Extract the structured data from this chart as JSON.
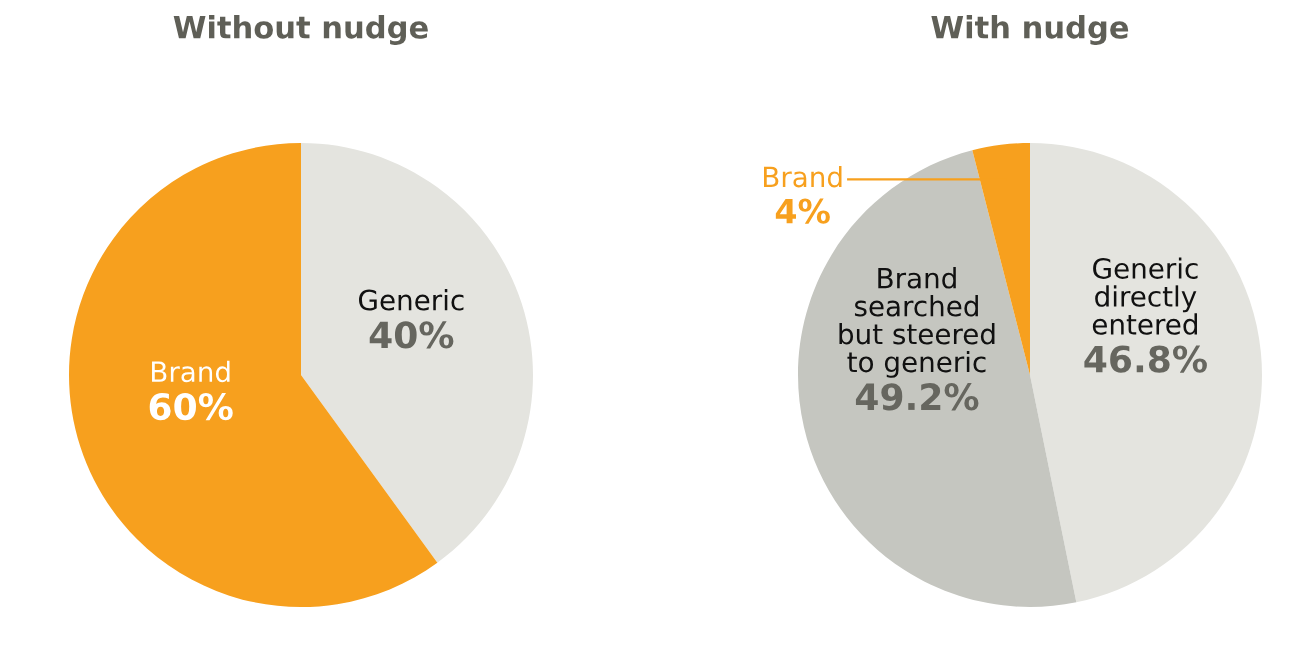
{
  "chart_data": [
    {
      "type": "pie",
      "title": "Without nudge",
      "categories": [
        "Generic",
        "Brand"
      ],
      "values": [
        40,
        60
      ],
      "value_labels": [
        "40%",
        "60%"
      ],
      "colors": [
        "#e4e4df",
        "#f7a01e"
      ]
    },
    {
      "type": "pie",
      "title": "With nudge",
      "categories": [
        "Generic\ndirectly\nentered",
        "Brand\nsearched\nbut steered\nto generic",
        "Brand"
      ],
      "values": [
        46.8,
        49.2,
        4
      ],
      "value_labels": [
        "46.8%",
        "49.2%",
        "4%"
      ],
      "colors": [
        "#e4e4df",
        "#c5c6c0",
        "#f7a01e"
      ]
    }
  ]
}
